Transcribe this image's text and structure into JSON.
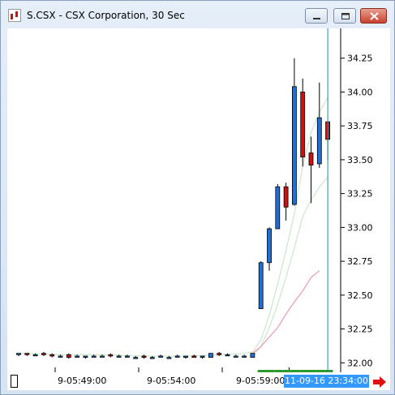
{
  "window": {
    "title": "S.CSX - CSX Corporation, 30 Sec",
    "icon": "chart-app-icon",
    "buttons": [
      "minimize-icon",
      "maximize-icon",
      "close-icon"
    ]
  },
  "colors": {
    "up_candle": "#1f6fd6",
    "down_candle": "#cc1111",
    "ma_short": "#cfe8cf",
    "ma_long": "#ee9fb8",
    "cursor_line": "#2a8a9a",
    "time_highlight": "#3399ff",
    "volume_bar": "#2e9a2e",
    "nav_arrow": "#dd1111"
  },
  "time_axis": {
    "labels": [
      "9-05:49:00",
      "9-05:54:00",
      "9-05:59:00"
    ],
    "current": "11-09-16 23:34:00"
  },
  "chart_data": {
    "type": "candlestick",
    "y_ticks": [
      "34.25",
      "34.00",
      "33.75",
      "33.50",
      "33.25",
      "33.00",
      "32.75",
      "32.50",
      "32.25",
      "32.00"
    ],
    "ylim": [
      31.93,
      34.47
    ],
    "candles": [
      {
        "o": 32.06,
        "h": 32.07,
        "l": 32.05,
        "c": 32.07
      },
      {
        "o": 32.07,
        "h": 32.07,
        "l": 32.05,
        "c": 32.06
      },
      {
        "o": 32.06,
        "h": 32.07,
        "l": 32.05,
        "c": 32.06
      },
      {
        "o": 32.07,
        "h": 32.08,
        "l": 32.05,
        "c": 32.06
      },
      {
        "o": 32.06,
        "h": 32.07,
        "l": 32.04,
        "c": 32.05
      },
      {
        "o": 32.05,
        "h": 32.06,
        "l": 32.04,
        "c": 32.05
      },
      {
        "o": 32.06,
        "h": 32.07,
        "l": 32.03,
        "c": 32.04
      },
      {
        "o": 32.05,
        "h": 32.06,
        "l": 32.04,
        "c": 32.05
      },
      {
        "o": 32.04,
        "h": 32.05,
        "l": 32.03,
        "c": 32.05
      },
      {
        "o": 32.05,
        "h": 32.06,
        "l": 32.04,
        "c": 32.05
      },
      {
        "o": 32.05,
        "h": 32.06,
        "l": 32.04,
        "c": 32.05
      },
      {
        "o": 32.06,
        "h": 32.07,
        "l": 32.04,
        "c": 32.05
      },
      {
        "o": 32.05,
        "h": 32.06,
        "l": 32.04,
        "c": 32.05
      },
      {
        "o": 32.05,
        "h": 32.06,
        "l": 32.04,
        "c": 32.05
      },
      {
        "o": 32.04,
        "h": 32.05,
        "l": 32.03,
        "c": 32.04
      },
      {
        "o": 32.05,
        "h": 32.06,
        "l": 32.03,
        "c": 32.04
      },
      {
        "o": 32.04,
        "h": 32.05,
        "l": 32.03,
        "c": 32.04
      },
      {
        "o": 32.05,
        "h": 32.06,
        "l": 32.04,
        "c": 32.05
      },
      {
        "o": 32.04,
        "h": 32.05,
        "l": 32.03,
        "c": 32.04
      },
      {
        "o": 32.05,
        "h": 32.06,
        "l": 32.04,
        "c": 32.05
      },
      {
        "o": 32.04,
        "h": 32.05,
        "l": 32.03,
        "c": 32.05
      },
      {
        "o": 32.05,
        "h": 32.06,
        "l": 32.04,
        "c": 32.04
      },
      {
        "o": 32.04,
        "h": 32.05,
        "l": 32.03,
        "c": 32.05
      },
      {
        "o": 32.04,
        "h": 32.07,
        "l": 32.04,
        "c": 32.07
      },
      {
        "o": 32.07,
        "h": 32.08,
        "l": 32.05,
        "c": 32.06
      },
      {
        "o": 32.06,
        "h": 32.07,
        "l": 32.05,
        "c": 32.06
      },
      {
        "o": 32.05,
        "h": 32.06,
        "l": 32.04,
        "c": 32.05
      },
      {
        "o": 32.05,
        "h": 32.06,
        "l": 32.04,
        "c": 32.05
      },
      {
        "o": 32.04,
        "h": 32.07,
        "l": 32.04,
        "c": 32.07
      },
      {
        "o": 32.4,
        "h": 32.75,
        "l": 32.4,
        "c": 32.74
      },
      {
        "o": 32.74,
        "h": 33.0,
        "l": 32.68,
        "c": 32.99
      },
      {
        "o": 32.99,
        "h": 33.32,
        "l": 32.99,
        "c": 33.3
      },
      {
        "o": 33.3,
        "h": 33.33,
        "l": 33.05,
        "c": 33.15
      },
      {
        "o": 33.17,
        "h": 34.25,
        "l": 33.16,
        "c": 34.04
      },
      {
        "o": 34.0,
        "h": 34.1,
        "l": 33.45,
        "c": 33.52
      },
      {
        "o": 33.55,
        "h": 33.67,
        "l": 33.18,
        "c": 33.46
      },
      {
        "o": 33.47,
        "h": 34.07,
        "l": 33.44,
        "c": 33.81
      },
      {
        "o": 33.78,
        "h": 33.78,
        "l": 33.5,
        "c": 33.65
      }
    ],
    "ma_short": [
      [
        28,
        32.05
      ],
      [
        29,
        32.12
      ],
      [
        30,
        32.26
      ],
      [
        31,
        32.43
      ],
      [
        32,
        32.63
      ],
      [
        33,
        32.85
      ],
      [
        34,
        33.08
      ],
      [
        35,
        33.2
      ],
      [
        36,
        33.3
      ],
      [
        37,
        33.37
      ]
    ],
    "ma_long": [
      [
        28,
        32.07
      ],
      [
        29,
        32.12
      ],
      [
        30,
        32.19
      ],
      [
        31,
        32.26
      ],
      [
        32,
        32.36
      ],
      [
        33,
        32.45
      ],
      [
        34,
        32.53
      ],
      [
        35,
        32.63
      ],
      [
        36,
        32.68
      ]
    ],
    "ma_short2": [
      [
        0,
        32.07
      ],
      [
        5,
        32.06
      ],
      [
        10,
        32.06
      ],
      [
        15,
        32.05
      ],
      [
        20,
        32.05
      ],
      [
        24,
        32.06
      ],
      [
        27,
        32.07
      ],
      [
        28,
        32.08
      ],
      [
        29,
        32.17
      ],
      [
        30,
        32.35
      ],
      [
        31,
        32.58
      ],
      [
        32,
        32.83
      ],
      [
        33,
        33.1
      ],
      [
        34,
        33.45
      ],
      [
        35,
        33.7
      ],
      [
        36,
        33.85
      ],
      [
        37,
        33.96
      ]
    ],
    "volume_marks": [
      29,
      30,
      31,
      32,
      33,
      34,
      35,
      36,
      37
    ]
  }
}
